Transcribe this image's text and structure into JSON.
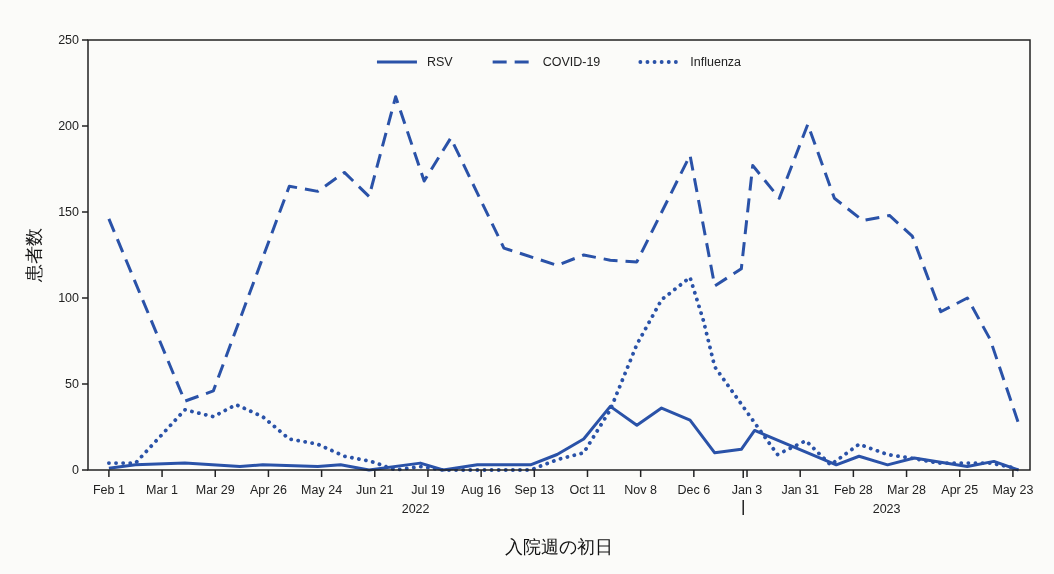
{
  "chart_data": {
    "type": "line",
    "xlabel": "入院週の初日",
    "ylabel": "患者数",
    "legend": "top",
    "marker": "none",
    "xlim": [
      "2022-01-21",
      "2023-06-01"
    ],
    "ylim": [
      0,
      250
    ],
    "yticks": [
      0,
      50,
      100,
      150,
      200,
      250
    ],
    "xticks": [
      {
        "value": "2022-02-01",
        "label": "Feb 1"
      },
      {
        "value": "2022-03-01",
        "label": "Mar 1"
      },
      {
        "value": "2022-03-29",
        "label": "Mar 29"
      },
      {
        "value": "2022-04-26",
        "label": "Apr 26"
      },
      {
        "value": "2022-05-24",
        "label": "May 24"
      },
      {
        "value": "2022-06-21",
        "label": "Jun 21"
      },
      {
        "value": "2022-07-19",
        "label": "Jul 19"
      },
      {
        "value": "2022-08-16",
        "label": "Aug 16"
      },
      {
        "value": "2022-09-13",
        "label": "Sep 13"
      },
      {
        "value": "2022-10-11",
        "label": "Oct 11"
      },
      {
        "value": "2022-11-08",
        "label": "Nov 8"
      },
      {
        "value": "2022-12-06",
        "label": "Dec 6"
      },
      {
        "value": "2023-01-01",
        "label": null
      },
      {
        "value": "2023-01-03",
        "label": "Jan 3"
      },
      {
        "value": "2023-01-31",
        "label": "Jan 31"
      },
      {
        "value": "2023-02-28",
        "label": "Feb 28"
      },
      {
        "value": "2023-03-28",
        "label": "Mar 28"
      },
      {
        "value": "2023-04-25",
        "label": "Apr 25"
      },
      {
        "value": "2023-05-23",
        "label": "May 23"
      }
    ],
    "annotations": [
      "2022",
      "2023"
    ],
    "series": [
      {
        "name": "RSV",
        "color": "#2a52a8",
        "line_style": "solid",
        "x": [
          "2022-02-01",
          "2022-02-15",
          "2022-03-13",
          "2022-04-11",
          "2022-04-23",
          "2022-05-22",
          "2022-06-03",
          "2022-06-18",
          "2022-07-15",
          "2022-07-27",
          "2022-08-14",
          "2022-09-11",
          "2022-09-25",
          "2022-10-09",
          "2022-10-23",
          "2022-11-06",
          "2022-11-19",
          "2022-12-04",
          "2022-12-17",
          "2022-12-31",
          "2023-01-07",
          "2023-02-19",
          "2023-03-03",
          "2023-03-18",
          "2023-04-01",
          "2023-04-29",
          "2023-05-13",
          "2023-05-26"
        ],
        "values": [
          1,
          3,
          4,
          2,
          3,
          2,
          3,
          0,
          4,
          0,
          3,
          3,
          9,
          18,
          37,
          26,
          36,
          29,
          10,
          12,
          23,
          3,
          8,
          3,
          7,
          2,
          5,
          0
        ]
      },
      {
        "name": "COVID-19",
        "color": "#2a52a8",
        "line_style": "dashed",
        "x": [
          "2022-02-01",
          "2022-03-13",
          "2022-03-28",
          "2022-05-07",
          "2022-05-22",
          "2022-06-05",
          "2022-06-18",
          "2022-07-02",
          "2022-07-17",
          "2022-07-31",
          "2022-08-28",
          "2022-09-25",
          "2022-10-09",
          "2022-10-23",
          "2022-11-06",
          "2022-12-04",
          "2022-12-17",
          "2022-12-31",
          "2023-01-06",
          "2023-01-20",
          "2023-02-04",
          "2023-02-18",
          "2023-03-05",
          "2023-03-19",
          "2023-03-31",
          "2023-04-15",
          "2023-04-29",
          "2023-05-11",
          "2023-05-26"
        ],
        "values": [
          146,
          40,
          46,
          165,
          162,
          173,
          159,
          217,
          168,
          193,
          129,
          119,
          125,
          122,
          121,
          183,
          107,
          117,
          177,
          158,
          201,
          158,
          145,
          148,
          136,
          92,
          100,
          76,
          27
        ]
      },
      {
        "name": "Influenza",
        "color": "#2a52a8",
        "line_style": "dotted",
        "x": [
          "2022-02-01",
          "2022-02-15",
          "2022-03-13",
          "2022-03-28",
          "2022-04-09",
          "2022-04-23",
          "2022-05-07",
          "2022-05-22",
          "2022-06-05",
          "2022-06-19",
          "2022-07-02",
          "2022-07-15",
          "2022-07-27",
          "2022-09-11",
          "2022-09-25",
          "2022-10-09",
          "2022-10-23",
          "2022-11-06",
          "2022-11-19",
          "2022-12-04",
          "2022-12-11",
          "2022-12-17",
          "2023-01-06",
          "2023-01-19",
          "2023-02-03",
          "2023-02-16",
          "2023-03-03",
          "2023-03-18",
          "2023-03-30",
          "2023-04-14",
          "2023-04-29",
          "2023-05-11",
          "2023-05-25"
        ],
        "values": [
          4,
          4,
          35,
          31,
          38,
          31,
          18,
          15,
          8,
          5,
          0,
          2,
          0,
          0,
          6,
          10,
          35,
          73,
          99,
          112,
          87,
          60,
          29,
          9,
          17,
          3,
          15,
          9,
          7,
          4,
          4,
          4,
          1
        ]
      }
    ]
  }
}
